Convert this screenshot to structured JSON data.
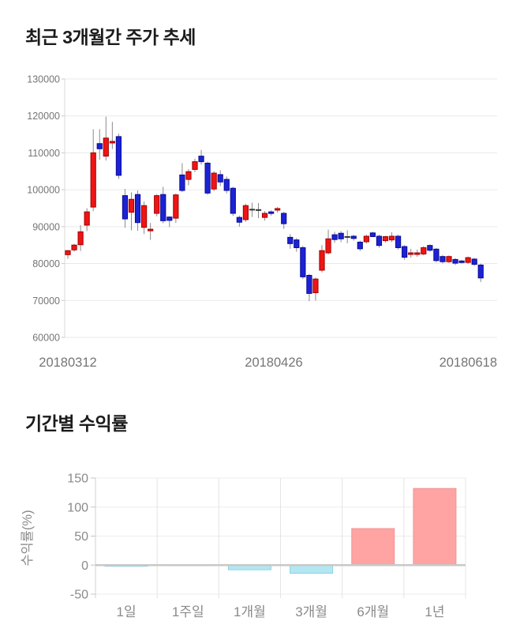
{
  "chart_data": [
    {
      "type": "candlestick",
      "title": "최근 3개월간 주가 추세",
      "xlabel": "",
      "ylabel": "",
      "ylim": [
        60000,
        130000
      ],
      "grid": true,
      "y_ticks": [
        130000,
        120000,
        110000,
        100000,
        90000,
        80000,
        70000,
        60000
      ],
      "x_tick_labels": [
        "20180312",
        "20180426",
        "20180618"
      ],
      "colors": {
        "up_fill": "#ee1515",
        "up_border": "#a40000",
        "down_fill": "#1c23d4",
        "down_border": "#0a0a96",
        "wick": "#8a8a8a",
        "doji": "#333333",
        "grid": "#e9e9e9",
        "axis": "#d9d9d9",
        "tick_text": "#757575"
      },
      "candles_ohlc": [
        [
          82400,
          83600,
          81300,
          83500
        ],
        [
          83700,
          85300,
          83200,
          85000
        ],
        [
          85100,
          90400,
          83400,
          88600
        ],
        [
          90400,
          95000,
          88800,
          94000
        ],
        [
          95300,
          116400,
          94200,
          110000
        ],
        [
          112500,
          116400,
          108100,
          111100
        ],
        [
          109100,
          119800,
          107900,
          114000
        ],
        [
          112900,
          118400,
          111000,
          113100
        ],
        [
          114400,
          115200,
          102900,
          103900
        ],
        [
          98400,
          100200,
          89700,
          92100
        ],
        [
          93900,
          99300,
          89000,
          97400
        ],
        [
          98700,
          99800,
          88900,
          91100
        ],
        [
          89800,
          96800,
          88000,
          95700
        ],
        [
          89100,
          91000,
          86400,
          89300
        ],
        [
          93600,
          98800,
          92800,
          98400
        ],
        [
          98700,
          100800,
          90900,
          91600
        ],
        [
          92600,
          92800,
          89900,
          91700
        ],
        [
          92300,
          99000,
          91000,
          98600
        ],
        [
          104000,
          107200,
          99400,
          99800
        ],
        [
          102800,
          105600,
          101200,
          104900
        ],
        [
          105500,
          108400,
          104800,
          107600
        ],
        [
          109100,
          110800,
          106800,
          107600
        ],
        [
          107200,
          107600,
          98600,
          99100
        ],
        [
          100200,
          105000,
          99600,
          104500
        ],
        [
          104100,
          105300,
          101000,
          102100
        ],
        [
          102800,
          103600,
          99000,
          99800
        ],
        [
          100400,
          100800,
          92900,
          93600
        ],
        [
          92500,
          93000,
          90000,
          91200
        ],
        [
          91900,
          96200,
          91300,
          95700
        ],
        [
          94600,
          96500,
          92600,
          94600
        ],
        [
          94500,
          96400,
          92300,
          94500
        ],
        [
          92500,
          94200,
          91600,
          93600
        ],
        [
          94000,
          94400,
          93000,
          93900
        ],
        [
          94700,
          95300,
          93800,
          94900
        ],
        [
          93600,
          94000,
          89400,
          90800
        ],
        [
          87100,
          88000,
          84000,
          85400
        ],
        [
          86400,
          86900,
          83200,
          84300
        ],
        [
          84300,
          84800,
          75800,
          76400
        ],
        [
          76800,
          77200,
          69800,
          71900
        ],
        [
          72100,
          76200,
          70000,
          75800
        ],
        [
          78200,
          85000,
          77600,
          83500
        ],
        [
          82900,
          89200,
          82400,
          86700
        ],
        [
          87800,
          88600,
          85600,
          86500
        ],
        [
          88200,
          88800,
          85800,
          86700
        ],
        [
          87200,
          89000,
          85500,
          87200
        ],
        [
          87400,
          87800,
          86200,
          86800
        ],
        [
          85800,
          86200,
          83400,
          84000
        ],
        [
          85900,
          87800,
          85400,
          87400
        ],
        [
          88300,
          88600,
          87200,
          87300
        ],
        [
          87400,
          87800,
          84300,
          84900
        ],
        [
          86200,
          87500,
          85700,
          87300
        ],
        [
          86400,
          88500,
          85800,
          87400
        ],
        [
          87400,
          87800,
          83800,
          84300
        ],
        [
          84600,
          85000,
          81000,
          81700
        ],
        [
          82800,
          84000,
          81600,
          82900
        ],
        [
          82800,
          83800,
          81800,
          82900
        ],
        [
          82600,
          84700,
          82200,
          84300
        ],
        [
          84900,
          85200,
          83200,
          83600
        ],
        [
          83900,
          84200,
          80300,
          80800
        ],
        [
          81900,
          82300,
          80000,
          80500
        ],
        [
          80500,
          82200,
          80100,
          81900
        ],
        [
          81100,
          81500,
          79600,
          80100
        ],
        [
          80700,
          81000,
          80000,
          80600
        ],
        [
          80300,
          81900,
          79900,
          81600
        ],
        [
          81200,
          81500,
          79300,
          79800
        ],
        [
          79600,
          80000,
          75000,
          76100
        ]
      ]
    },
    {
      "type": "bar",
      "title": "기간별 수익률",
      "xlabel": "",
      "ylabel": "수익률(%)",
      "ylim": [
        -50,
        150
      ],
      "grid": true,
      "y_ticks": [
        150,
        100,
        50,
        0,
        -50
      ],
      "categories": [
        "1일",
        "1주일",
        "1개월",
        "3개월",
        "6개월",
        "1년"
      ],
      "values": [
        -2,
        -0.5,
        -8,
        -14,
        63,
        132
      ],
      "colors": {
        "positive_fill": "#ffa3a3",
        "positive_border": "#f09595",
        "negative_fill": "#b3e7f2",
        "negative_border": "#8ad3e4",
        "grid": "#ececec",
        "vgrid": "#e4e4e4",
        "zero_line": "#c8c8c8",
        "tick_text": "#8a8a8a"
      }
    }
  ]
}
